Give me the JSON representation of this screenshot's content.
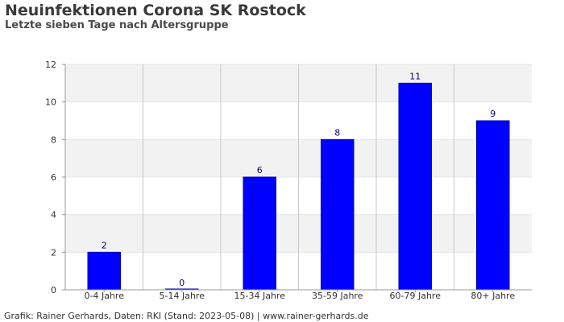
{
  "header": {
    "title": "Neuinfektionen Corona SK Rostock",
    "subtitle": "Letzte sieben Tage nach Altersgruppe"
  },
  "footer": {
    "credit": "Grafik: Rainer Gerhards, Daten: RKI (Stand: 2023-05-08) | www.rainer-gerhards.de"
  },
  "colors": {
    "bar": "#0000ff",
    "bar_border": "#0000b4",
    "band": "#f2f2f2",
    "grid": "#c8c8c8"
  },
  "chart_data": {
    "type": "bar",
    "title": "Neuinfektionen Corona SK Rostock",
    "subtitle": "Letzte sieben Tage nach Altersgruppe",
    "categories": [
      "0-4 Jahre",
      "5-14 Jahre",
      "15-34 Jahre",
      "35-59 Jahre",
      "60-79 Jahre",
      "80+ Jahre"
    ],
    "values": [
      2,
      0,
      6,
      8,
      11,
      9
    ],
    "data_labels": [
      "2",
      "0",
      "6",
      "8",
      "11",
      "9"
    ],
    "yticks": [
      0,
      2,
      4,
      6,
      8,
      10,
      12
    ],
    "ytick_labels": [
      "0",
      "2",
      "4",
      "6",
      "8",
      "10",
      "12"
    ],
    "ylim": [
      0,
      12
    ],
    "xlabel": "",
    "ylabel": "",
    "grid": true,
    "legend": "none"
  }
}
